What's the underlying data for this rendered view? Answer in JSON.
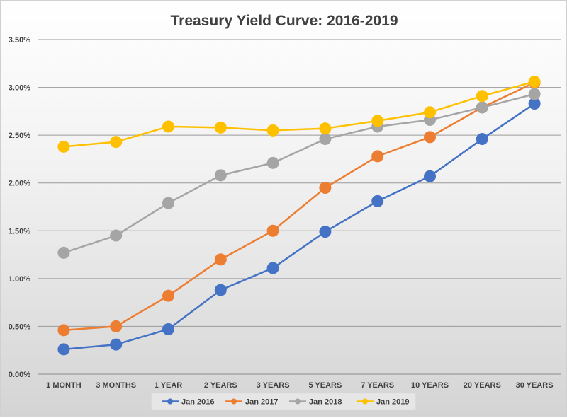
{
  "chart_data": {
    "type": "line",
    "title": "Treasury Yield Curve: 2016-2019",
    "xlabel": "",
    "ylabel": "",
    "categories": [
      "1 MONTH",
      "3 MONTHS",
      "1 YEAR",
      "2 YEARS",
      "3 YEARS",
      "5 YEARS",
      "7 YEARS",
      "10 YEARS",
      "20 YEARS",
      "30 YEARS"
    ],
    "ylim": [
      0,
      3.5
    ],
    "yticks": [
      "0.00%",
      "0.50%",
      "1.00%",
      "1.50%",
      "2.00%",
      "2.50%",
      "3.00%",
      "3.50%"
    ],
    "y_units": "percent",
    "grid": true,
    "legend_position": "bottom",
    "series": [
      {
        "name": "Jan 2016",
        "color": "#4472C4",
        "values": [
          0.26,
          0.31,
          0.47,
          0.88,
          1.11,
          1.49,
          1.81,
          2.07,
          2.46,
          2.83
        ]
      },
      {
        "name": "Jan 2017",
        "color": "#ED7D31",
        "values": [
          0.46,
          0.5,
          0.82,
          1.2,
          1.5,
          1.95,
          2.28,
          2.48,
          2.79,
          3.05
        ]
      },
      {
        "name": "Jan 2018",
        "color": "#A5A5A5",
        "values": [
          1.27,
          1.45,
          1.79,
          2.08,
          2.21,
          2.46,
          2.59,
          2.66,
          2.79,
          2.93
        ]
      },
      {
        "name": "Jan 2019",
        "color": "#FFC000",
        "values": [
          2.38,
          2.43,
          2.59,
          2.58,
          2.55,
          2.57,
          2.65,
          2.74,
          2.91,
          3.06
        ]
      }
    ]
  }
}
